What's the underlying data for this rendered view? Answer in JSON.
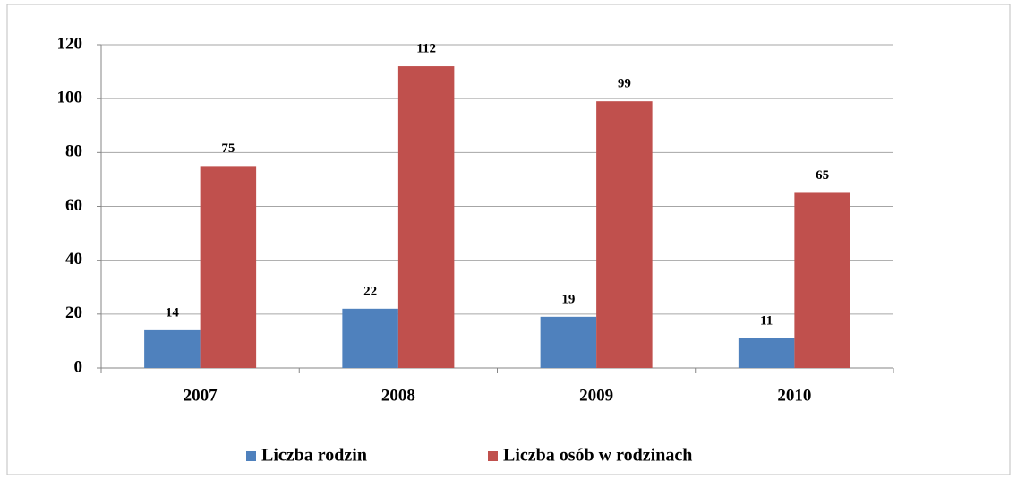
{
  "chart_data": {
    "type": "bar",
    "categories": [
      "2007",
      "2008",
      "2009",
      "2010"
    ],
    "series": [
      {
        "name": "Liczba rodzin",
        "color": "#4f81bd",
        "values": [
          14,
          22,
          19,
          11
        ]
      },
      {
        "name": "Liczba osób w rodzinach",
        "color": "#c0504d",
        "values": [
          75,
          112,
          99,
          65
        ]
      }
    ],
    "ylim": [
      0,
      120
    ],
    "yticks": [
      0,
      20,
      40,
      60,
      80,
      100,
      120
    ],
    "grid": true,
    "legend": "bottom"
  }
}
